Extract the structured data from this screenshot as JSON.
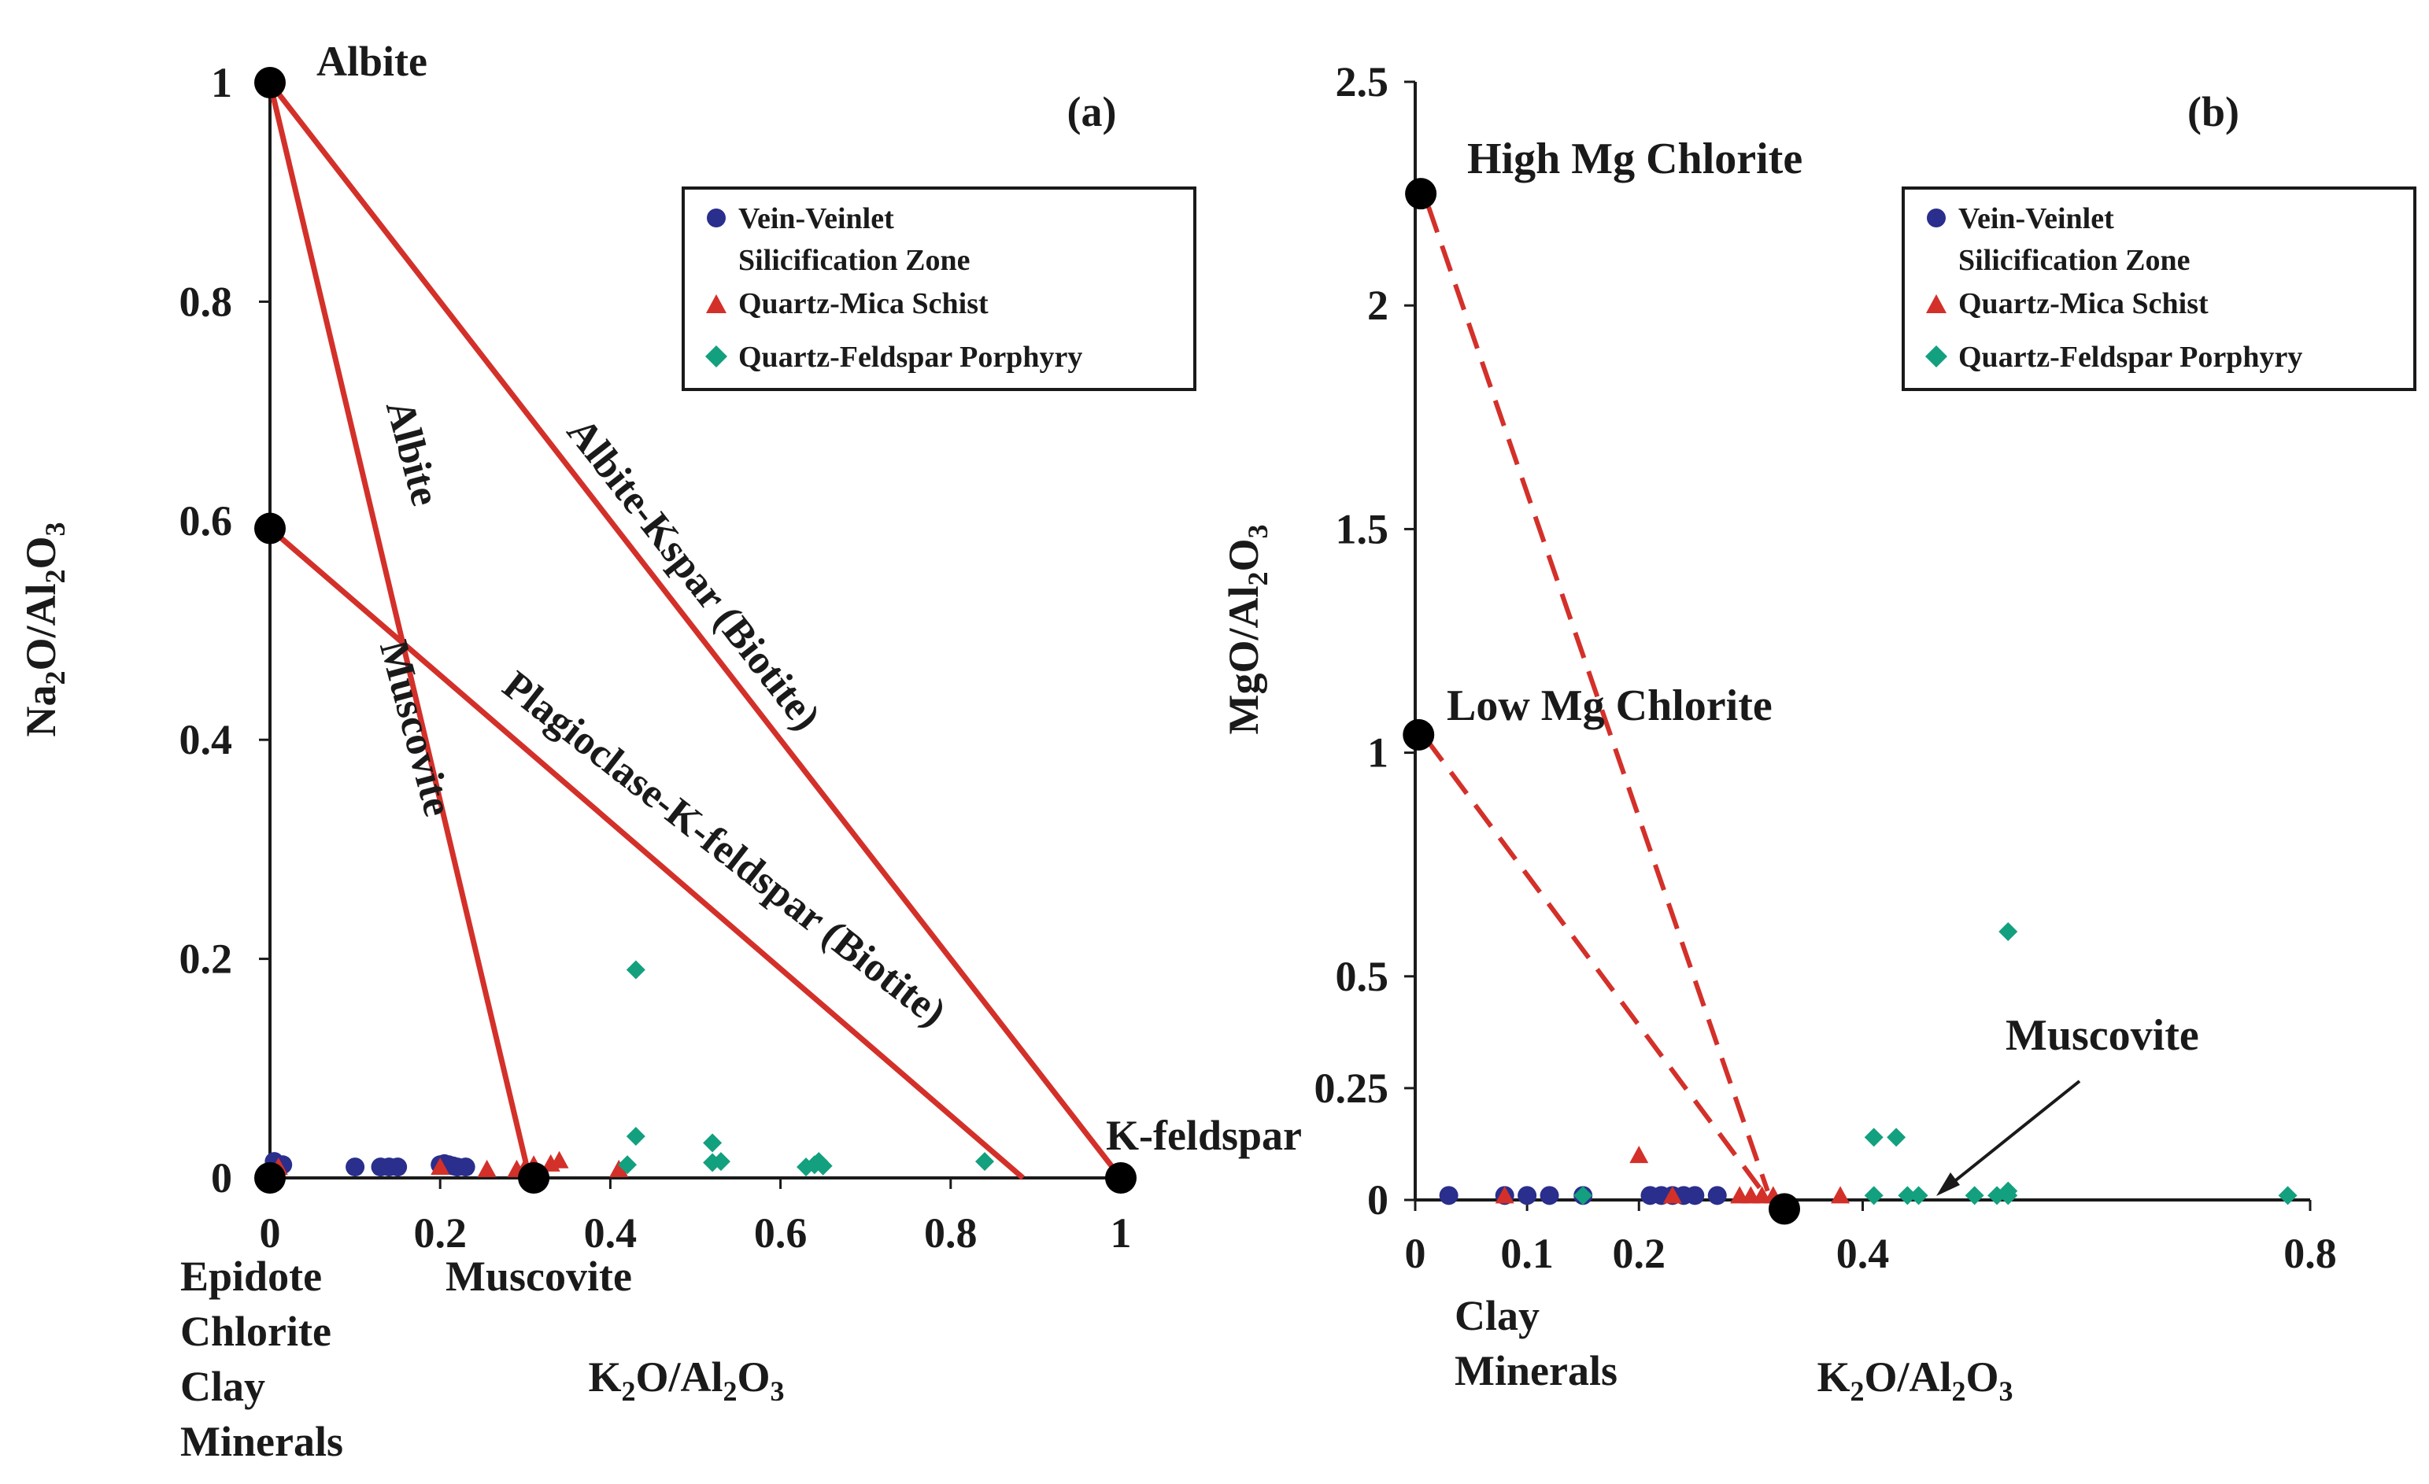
{
  "colors": {
    "axis": "#1a1a1a",
    "tie_line": "#d3302a",
    "vein": "#2a2e8c",
    "schist": "#d3302a",
    "porphyry": "#13a07e",
    "endmember": "#000000"
  },
  "legend_entries": [
    {
      "key": "vein",
      "line1": "Vein-Veinlet",
      "line2": "Silicification Zone",
      "marker": "circle"
    },
    {
      "key": "schist",
      "line1": "Quartz-Mica Schist",
      "line2": "",
      "marker": "triangle"
    },
    {
      "key": "porphyry",
      "line1": "Quartz-Feldspar Porphyry",
      "line2": "",
      "marker": "diamond"
    }
  ],
  "chart_data": [
    {
      "type": "scatter",
      "panel_label": "(a)",
      "xlabel": {
        "a": "K",
        "b": "2",
        "c": "O/Al",
        "d": "2",
        "e": "O",
        "f": "3"
      },
      "ylabel": {
        "a": "Na",
        "b": "2",
        "c": "O/Al",
        "d": "2",
        "e": "O",
        "f": "3"
      },
      "xlim": [
        0,
        1
      ],
      "ylim": [
        0,
        1
      ],
      "xticks": [
        {
          "v": 0,
          "t": "0"
        },
        {
          "v": 0.2,
          "t": "0.2"
        },
        {
          "v": 0.4,
          "t": "0.4"
        },
        {
          "v": 0.6,
          "t": "0.6"
        },
        {
          "v": 0.8,
          "t": "0.8"
        },
        {
          "v": 1,
          "t": "1"
        }
      ],
      "yticks": [
        {
          "v": 0,
          "t": "0"
        },
        {
          "v": 0.2,
          "t": "0.2"
        },
        {
          "v": 0.4,
          "t": "0.4"
        },
        {
          "v": 0.6,
          "t": "0.6"
        },
        {
          "v": 0.8,
          "t": "0.8"
        },
        {
          "v": 1,
          "t": "1"
        }
      ],
      "endmembers": [
        {
          "name": "albite",
          "label": "Albite",
          "x": 0,
          "y": 1
        },
        {
          "name": "plagioclase",
          "label": "",
          "x": 0,
          "y": 0.593
        },
        {
          "name": "epidote-chlorite-clay",
          "label": "Epidote\nChlorite\nClay\nMinerals",
          "x": 0,
          "y": 0
        },
        {
          "name": "muscovite",
          "label": "Muscovite",
          "x": 0.31,
          "y": 0
        },
        {
          "name": "k-feldspar",
          "label": "K-feldspar",
          "x": 1,
          "y": 0
        }
      ],
      "tie_lines": [
        {
          "name": "albite-kspar",
          "label": "Albite-Kspar (Biotite)",
          "from": [
            0,
            1
          ],
          "to": [
            1,
            0
          ],
          "dashed": false
        },
        {
          "name": "albite-muscovite",
          "label_upper": "Albite",
          "label_lower": "Muscovite",
          "from": [
            0,
            1
          ],
          "to": [
            0.305,
            0
          ],
          "dashed": false
        },
        {
          "name": "plagioclase-kfeldspar",
          "label": "Plagioclase-K-feldspar (Biotite)",
          "from": [
            0,
            0.593
          ],
          "to": [
            0.885,
            0
          ],
          "dashed": false
        }
      ],
      "series": [
        {
          "name": "Vein-Veinlet Silicification Zone",
          "key": "vein",
          "points": [
            [
              0.005,
              0.015
            ],
            [
              0.015,
              0.012
            ],
            [
              0.1,
              0.01
            ],
            [
              0.13,
              0.01
            ],
            [
              0.14,
              0.01
            ],
            [
              0.15,
              0.01
            ],
            [
              0.2,
              0.012
            ],
            [
              0.205,
              0.013
            ],
            [
              0.21,
              0.012
            ],
            [
              0.215,
              0.011
            ],
            [
              0.22,
              0.01
            ],
            [
              0.23,
              0.01
            ]
          ]
        },
        {
          "name": "Quartz-Mica Schist",
          "key": "schist",
          "points": [
            [
              0.01,
              0.01
            ],
            [
              0.2,
              0.01
            ],
            [
              0.255,
              0.008
            ],
            [
              0.29,
              0.008
            ],
            [
              0.3,
              0.01
            ],
            [
              0.31,
              0.012
            ],
            [
              0.33,
              0.013
            ],
            [
              0.34,
              0.016
            ],
            [
              0.41,
              0.008
            ]
          ]
        },
        {
          "name": "Quartz-Feldspar Porphyry",
          "key": "porphyry",
          "points": [
            [
              0.43,
              0.19
            ],
            [
              0.43,
              0.038
            ],
            [
              0.42,
              0.012
            ],
            [
              0.52,
              0.032
            ],
            [
              0.52,
              0.014
            ],
            [
              0.53,
              0.015
            ],
            [
              0.63,
              0.01
            ],
            [
              0.64,
              0.012
            ],
            [
              0.645,
              0.015
            ],
            [
              0.65,
              0.011
            ],
            [
              0.84,
              0.015
            ]
          ]
        }
      ]
    },
    {
      "type": "scatter",
      "panel_label": "(b)",
      "xlabel": {
        "a": "K",
        "b": "2",
        "c": "O/Al",
        "d": "2",
        "e": "O",
        "f": "3"
      },
      "ylabel": {
        "a": "MgO/Al",
        "b": "2",
        "c": "O",
        "d": "3",
        "e": "",
        "f": ""
      },
      "xlim": [
        0,
        0.8
      ],
      "ylim": [
        0,
        2.5
      ],
      "xticks": [
        {
          "v": 0,
          "t": "0"
        },
        {
          "v": 0.1,
          "t": "0.1"
        },
        {
          "v": 0.2,
          "t": "0.2"
        },
        {
          "v": 0.4,
          "t": "0.4"
        },
        {
          "v": 0.8,
          "t": "0.8"
        }
      ],
      "yticks": [
        {
          "v": 0,
          "t": "0"
        },
        {
          "v": 0.25,
          "t": "0.25"
        },
        {
          "v": 0.5,
          "t": "0.5"
        },
        {
          "v": 1,
          "t": "1"
        },
        {
          "v": 1.5,
          "t": "1.5"
        },
        {
          "v": 2,
          "t": "2"
        },
        {
          "v": 2.5,
          "t": "2.5"
        }
      ],
      "endmembers": [
        {
          "name": "high-mg-chlorite",
          "label": "High Mg Chlorite",
          "x": 0.005,
          "y": 2.25
        },
        {
          "name": "low-mg-chlorite",
          "label": "Low Mg Chlorite",
          "x": 0.003,
          "y": 1.04
        },
        {
          "name": "muscovite",
          "label": "Muscovite",
          "x": 0.33,
          "y": -0.02
        },
        {
          "name": "clay-minerals",
          "label": "Clay\nMinerals",
          "x": 0.04,
          "y": -0.25
        }
      ],
      "tie_lines": [
        {
          "name": "high-mg-chlorite-muscovite",
          "from": [
            0.012,
            2.22
          ],
          "to": [
            0.315,
            0.02
          ],
          "dashed": true
        },
        {
          "name": "low-mg-chlorite-muscovite",
          "from": [
            0.01,
            1.03
          ],
          "to": [
            0.31,
            0.02
          ],
          "dashed": true
        }
      ],
      "annotation_arrow": {
        "label": "Muscovite",
        "from": [
          0.43,
          0.26
        ],
        "to": [
          0.335,
          0.01
        ]
      },
      "series": [
        {
          "name": "Vein-Veinlet Silicification Zone",
          "key": "vein",
          "points": [
            [
              0.03,
              0.01
            ],
            [
              0.08,
              0.01
            ],
            [
              0.1,
              0.01
            ],
            [
              0.12,
              0.01
            ],
            [
              0.15,
              0.01
            ],
            [
              0.21,
              0.01
            ],
            [
              0.22,
              0.01
            ],
            [
              0.23,
              0.01
            ],
            [
              0.24,
              0.01
            ],
            [
              0.25,
              0.01
            ],
            [
              0.27,
              0.01
            ]
          ]
        },
        {
          "name": "Quartz-Mica Schist",
          "key": "schist",
          "points": [
            [
              0.08,
              0.01
            ],
            [
              0.2,
              0.1
            ],
            [
              0.23,
              0.01
            ],
            [
              0.29,
              0.01
            ],
            [
              0.3,
              0.01
            ],
            [
              0.31,
              0.01
            ],
            [
              0.32,
              0.01
            ],
            [
              0.38,
              0.01
            ]
          ]
        },
        {
          "name": "Quartz-Feldspar Porphyry",
          "key": "porphyry",
          "points": [
            [
              0.15,
              0.01
            ],
            [
              0.41,
              0.14
            ],
            [
              0.43,
              0.14
            ],
            [
              0.41,
              0.01
            ],
            [
              0.44,
              0.01
            ],
            [
              0.45,
              0.01
            ],
            [
              0.5,
              0.01
            ],
            [
              0.52,
              0.01
            ],
            [
              0.53,
              0.01
            ],
            [
              0.53,
              0.02
            ],
            [
              0.53,
              0.6
            ],
            [
              0.78,
              0.01
            ]
          ]
        }
      ]
    }
  ]
}
